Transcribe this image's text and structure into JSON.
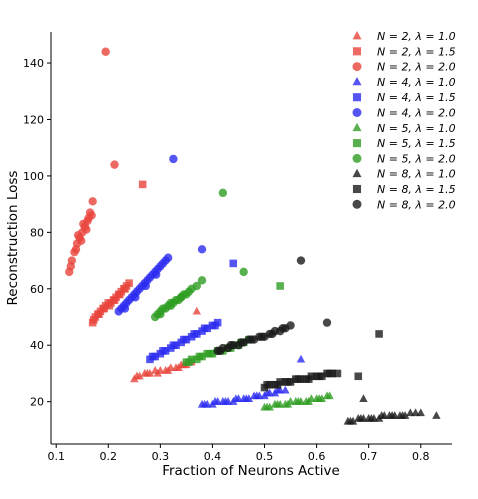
{
  "chart_data": {
    "type": "scatter",
    "title": "",
    "xlabel": "Fraction of Neurons Active",
    "ylabel": "Reconstruction Loss",
    "xlim": [
      0.09,
      0.86
    ],
    "ylim": [
      5,
      151
    ],
    "xticks": [
      "0.1",
      "0.2",
      "0.3",
      "0.4",
      "0.5",
      "0.6",
      "0.7",
      "0.8"
    ],
    "yticks": [
      "20",
      "40",
      "60",
      "80",
      "100",
      "120",
      "140"
    ],
    "grid": false,
    "legend_position": "top-right",
    "colors": {
      "N=2": "#e8453c",
      "N=4": "#2a2af0",
      "N=5": "#2e9e22",
      "N=8": "#1a1a1a"
    },
    "marker_shapes": {
      "1.0": "triangle",
      "1.5": "square",
      "2.0": "circle"
    },
    "series": [
      {
        "name": "N = 2, λ = 1.0",
        "N": "N=2",
        "lambda": "1.0",
        "x": [
          0.25,
          0.26,
          0.27,
          0.28,
          0.29,
          0.3,
          0.31,
          0.32,
          0.33,
          0.34,
          0.345,
          0.35,
          0.36,
          0.255,
          0.275,
          0.295,
          0.315,
          0.335,
          0.37
        ],
        "y": [
          28,
          29,
          30,
          30,
          31,
          31,
          31,
          32,
          32,
          33,
          33,
          33,
          34,
          29,
          30,
          30,
          31,
          32,
          52
        ]
      },
      {
        "name": "N = 2, λ = 1.5",
        "N": "N=2",
        "lambda": "1.5",
        "x": [
          0.17,
          0.175,
          0.18,
          0.185,
          0.19,
          0.195,
          0.2,
          0.205,
          0.21,
          0.215,
          0.22,
          0.225,
          0.23,
          0.235,
          0.24,
          0.172,
          0.182,
          0.192,
          0.202,
          0.212,
          0.222,
          0.232,
          0.266
        ],
        "y": [
          48,
          50,
          51,
          52,
          53,
          54,
          55,
          55,
          56,
          57,
          58,
          59,
          60,
          61,
          62,
          49,
          51,
          53,
          54,
          56,
          58,
          60,
          97
        ]
      },
      {
        "name": "N = 2, λ = 2.0",
        "N": "N=2",
        "lambda": "2.0",
        "x": [
          0.125,
          0.13,
          0.135,
          0.14,
          0.145,
          0.15,
          0.155,
          0.16,
          0.165,
          0.17,
          0.128,
          0.138,
          0.148,
          0.158,
          0.168,
          0.142,
          0.152,
          0.162,
          0.212,
          0.195
        ],
        "y": [
          66,
          70,
          73,
          76,
          78,
          80,
          82,
          84,
          87,
          91,
          68,
          74,
          77,
          81,
          86,
          79,
          83,
          85,
          104,
          144
        ]
      },
      {
        "name": "N = 4, λ = 1.0",
        "N": "N=4",
        "lambda": "1.0",
        "x": [
          0.38,
          0.39,
          0.4,
          0.41,
          0.42,
          0.43,
          0.44,
          0.45,
          0.46,
          0.47,
          0.48,
          0.49,
          0.5,
          0.51,
          0.52,
          0.53,
          0.54,
          0.385,
          0.405,
          0.425,
          0.445,
          0.465,
          0.485,
          0.505,
          0.525,
          0.57
        ],
        "y": [
          19,
          19,
          19,
          20,
          20,
          20,
          20,
          21,
          21,
          21,
          22,
          22,
          22,
          23,
          23,
          24,
          24,
          19,
          20,
          20,
          21,
          21,
          22,
          23,
          24,
          35
        ]
      },
      {
        "name": "N = 4, λ = 1.5",
        "N": "N=4",
        "lambda": "1.5",
        "x": [
          0.28,
          0.29,
          0.3,
          0.31,
          0.32,
          0.33,
          0.34,
          0.35,
          0.36,
          0.37,
          0.38,
          0.39,
          0.4,
          0.41,
          0.285,
          0.305,
          0.325,
          0.345,
          0.365,
          0.385,
          0.405,
          0.44
        ],
        "y": [
          35,
          36,
          37,
          38,
          39,
          40,
          41,
          42,
          43,
          44,
          45,
          46,
          47,
          48,
          36,
          38,
          40,
          42,
          44,
          46,
          47,
          69
        ]
      },
      {
        "name": "N = 4, λ = 2.0",
        "N": "N=4",
        "lambda": "2.0",
        "x": [
          0.22,
          0.225,
          0.23,
          0.235,
          0.24,
          0.245,
          0.25,
          0.255,
          0.26,
          0.265,
          0.27,
          0.275,
          0.28,
          0.285,
          0.29,
          0.295,
          0.3,
          0.305,
          0.31,
          0.315,
          0.232,
          0.252,
          0.272,
          0.292,
          0.38,
          0.325
        ],
        "y": [
          52,
          53,
          54,
          55,
          56,
          57,
          58,
          59,
          60,
          61,
          62,
          63,
          64,
          65,
          66,
          67,
          68,
          69,
          70,
          71,
          53,
          57,
          61,
          65,
          74,
          106
        ]
      },
      {
        "name": "N = 5, λ = 1.0",
        "N": "N=5",
        "lambda": "1.0",
        "x": [
          0.5,
          0.51,
          0.52,
          0.53,
          0.54,
          0.55,
          0.56,
          0.57,
          0.58,
          0.59,
          0.6,
          0.61,
          0.62,
          0.505,
          0.525,
          0.545,
          0.565,
          0.585,
          0.605,
          0.625
        ],
        "y": [
          18,
          18,
          19,
          19,
          19,
          20,
          20,
          20,
          20,
          21,
          21,
          21,
          22,
          18,
          19,
          19,
          20,
          20,
          21,
          22
        ]
      },
      {
        "name": "N = 5, λ = 1.5",
        "N": "N=5",
        "lambda": "1.5",
        "x": [
          0.35,
          0.36,
          0.37,
          0.38,
          0.39,
          0.4,
          0.41,
          0.42,
          0.43,
          0.44,
          0.45,
          0.46,
          0.47,
          0.355,
          0.375,
          0.395,
          0.415,
          0.435,
          0.455,
          0.53
        ],
        "y": [
          34,
          35,
          35,
          36,
          37,
          37,
          38,
          38,
          39,
          40,
          40,
          41,
          42,
          34,
          36,
          37,
          38,
          39,
          41,
          61
        ]
      },
      {
        "name": "N = 5, λ = 2.0",
        "N": "N=5",
        "lambda": "2.0",
        "x": [
          0.29,
          0.295,
          0.3,
          0.305,
          0.31,
          0.315,
          0.32,
          0.325,
          0.33,
          0.335,
          0.34,
          0.345,
          0.35,
          0.355,
          0.36,
          0.37,
          0.38,
          0.3,
          0.32,
          0.34,
          0.46,
          0.42
        ],
        "y": [
          50,
          51,
          52,
          53,
          53,
          54,
          55,
          55,
          56,
          56,
          57,
          58,
          58,
          59,
          60,
          61,
          63,
          51,
          54,
          57,
          66,
          94
        ]
      },
      {
        "name": "N = 8, λ = 1.0",
        "N": "N=8",
        "lambda": "1.0",
        "x": [
          0.66,
          0.67,
          0.68,
          0.69,
          0.7,
          0.71,
          0.72,
          0.73,
          0.74,
          0.75,
          0.76,
          0.77,
          0.78,
          0.79,
          0.665,
          0.685,
          0.705,
          0.725,
          0.745,
          0.765,
          0.8,
          0.83,
          0.69
        ],
        "y": [
          13,
          13,
          14,
          14,
          14,
          14,
          14,
          15,
          15,
          15,
          15,
          15,
          16,
          16,
          13,
          14,
          14,
          15,
          15,
          15,
          16,
          15,
          21
        ]
      },
      {
        "name": "N = 8, λ = 1.5",
        "N": "N=8",
        "lambda": "1.5",
        "x": [
          0.5,
          0.51,
          0.52,
          0.53,
          0.54,
          0.55,
          0.56,
          0.57,
          0.58,
          0.59,
          0.6,
          0.61,
          0.62,
          0.63,
          0.64,
          0.505,
          0.525,
          0.545,
          0.565,
          0.585,
          0.605,
          0.625,
          0.68,
          0.72
        ],
        "y": [
          25,
          26,
          26,
          27,
          27,
          27,
          28,
          28,
          28,
          29,
          29,
          29,
          30,
          30,
          30,
          26,
          26,
          27,
          28,
          28,
          29,
          30,
          29,
          44
        ]
      },
      {
        "name": "N = 8, λ = 2.0",
        "N": "N=8",
        "lambda": "2.0",
        "x": [
          0.41,
          0.42,
          0.43,
          0.44,
          0.45,
          0.46,
          0.47,
          0.48,
          0.49,
          0.5,
          0.51,
          0.52,
          0.53,
          0.54,
          0.55,
          0.415,
          0.435,
          0.455,
          0.475,
          0.495,
          0.515,
          0.535,
          0.62,
          0.57
        ],
        "y": [
          38,
          39,
          39,
          40,
          40,
          41,
          42,
          42,
          43,
          43,
          44,
          45,
          45,
          46,
          47,
          38,
          40,
          41,
          42,
          43,
          44,
          46,
          48,
          70
        ]
      }
    ]
  }
}
